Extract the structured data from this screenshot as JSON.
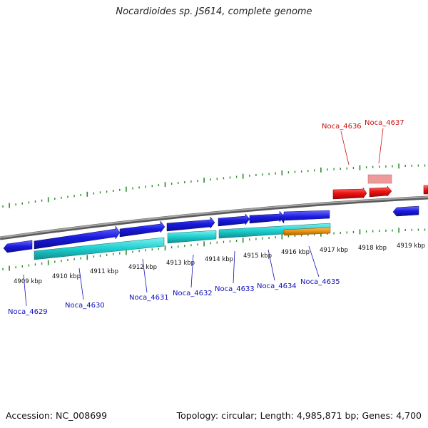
{
  "title": "Nocardioides sp. JS614, complete genome",
  "footer": {
    "accession": "Accession: NC_008699",
    "summary": "Topology: circular; Length: 4,985,871 bp; Genes: 4,700"
  },
  "colors": {
    "forward_cds": "#1a1ae0",
    "reverse_rna": "#1ecece",
    "orange_feature": "#e8900a",
    "highlight": "#ee1111",
    "highlight_faded": "#ee8888",
    "backbone": "#888888",
    "ticks": "#2b8a2b",
    "label_blue": "#1010c0",
    "label_red": "#cc1111"
  },
  "scale_labels": [
    "4909 kbp",
    "4910 kbp",
    "4911 kbp",
    "4912 kbp",
    "4913 kbp",
    "4914 kbp",
    "4915 kbp",
    "4916 kbp",
    "4917 kbp",
    "4918 kbp",
    "4919 kbp"
  ],
  "gene_labels_bottom": [
    "Noca_4629",
    "Noca_4630",
    "Noca_4631",
    "Noca_4632",
    "Noca_4633",
    "Noca_4634",
    "Noca_4635"
  ],
  "gene_labels_top": [
    "Noca_4636",
    "Noca_4637"
  ]
}
